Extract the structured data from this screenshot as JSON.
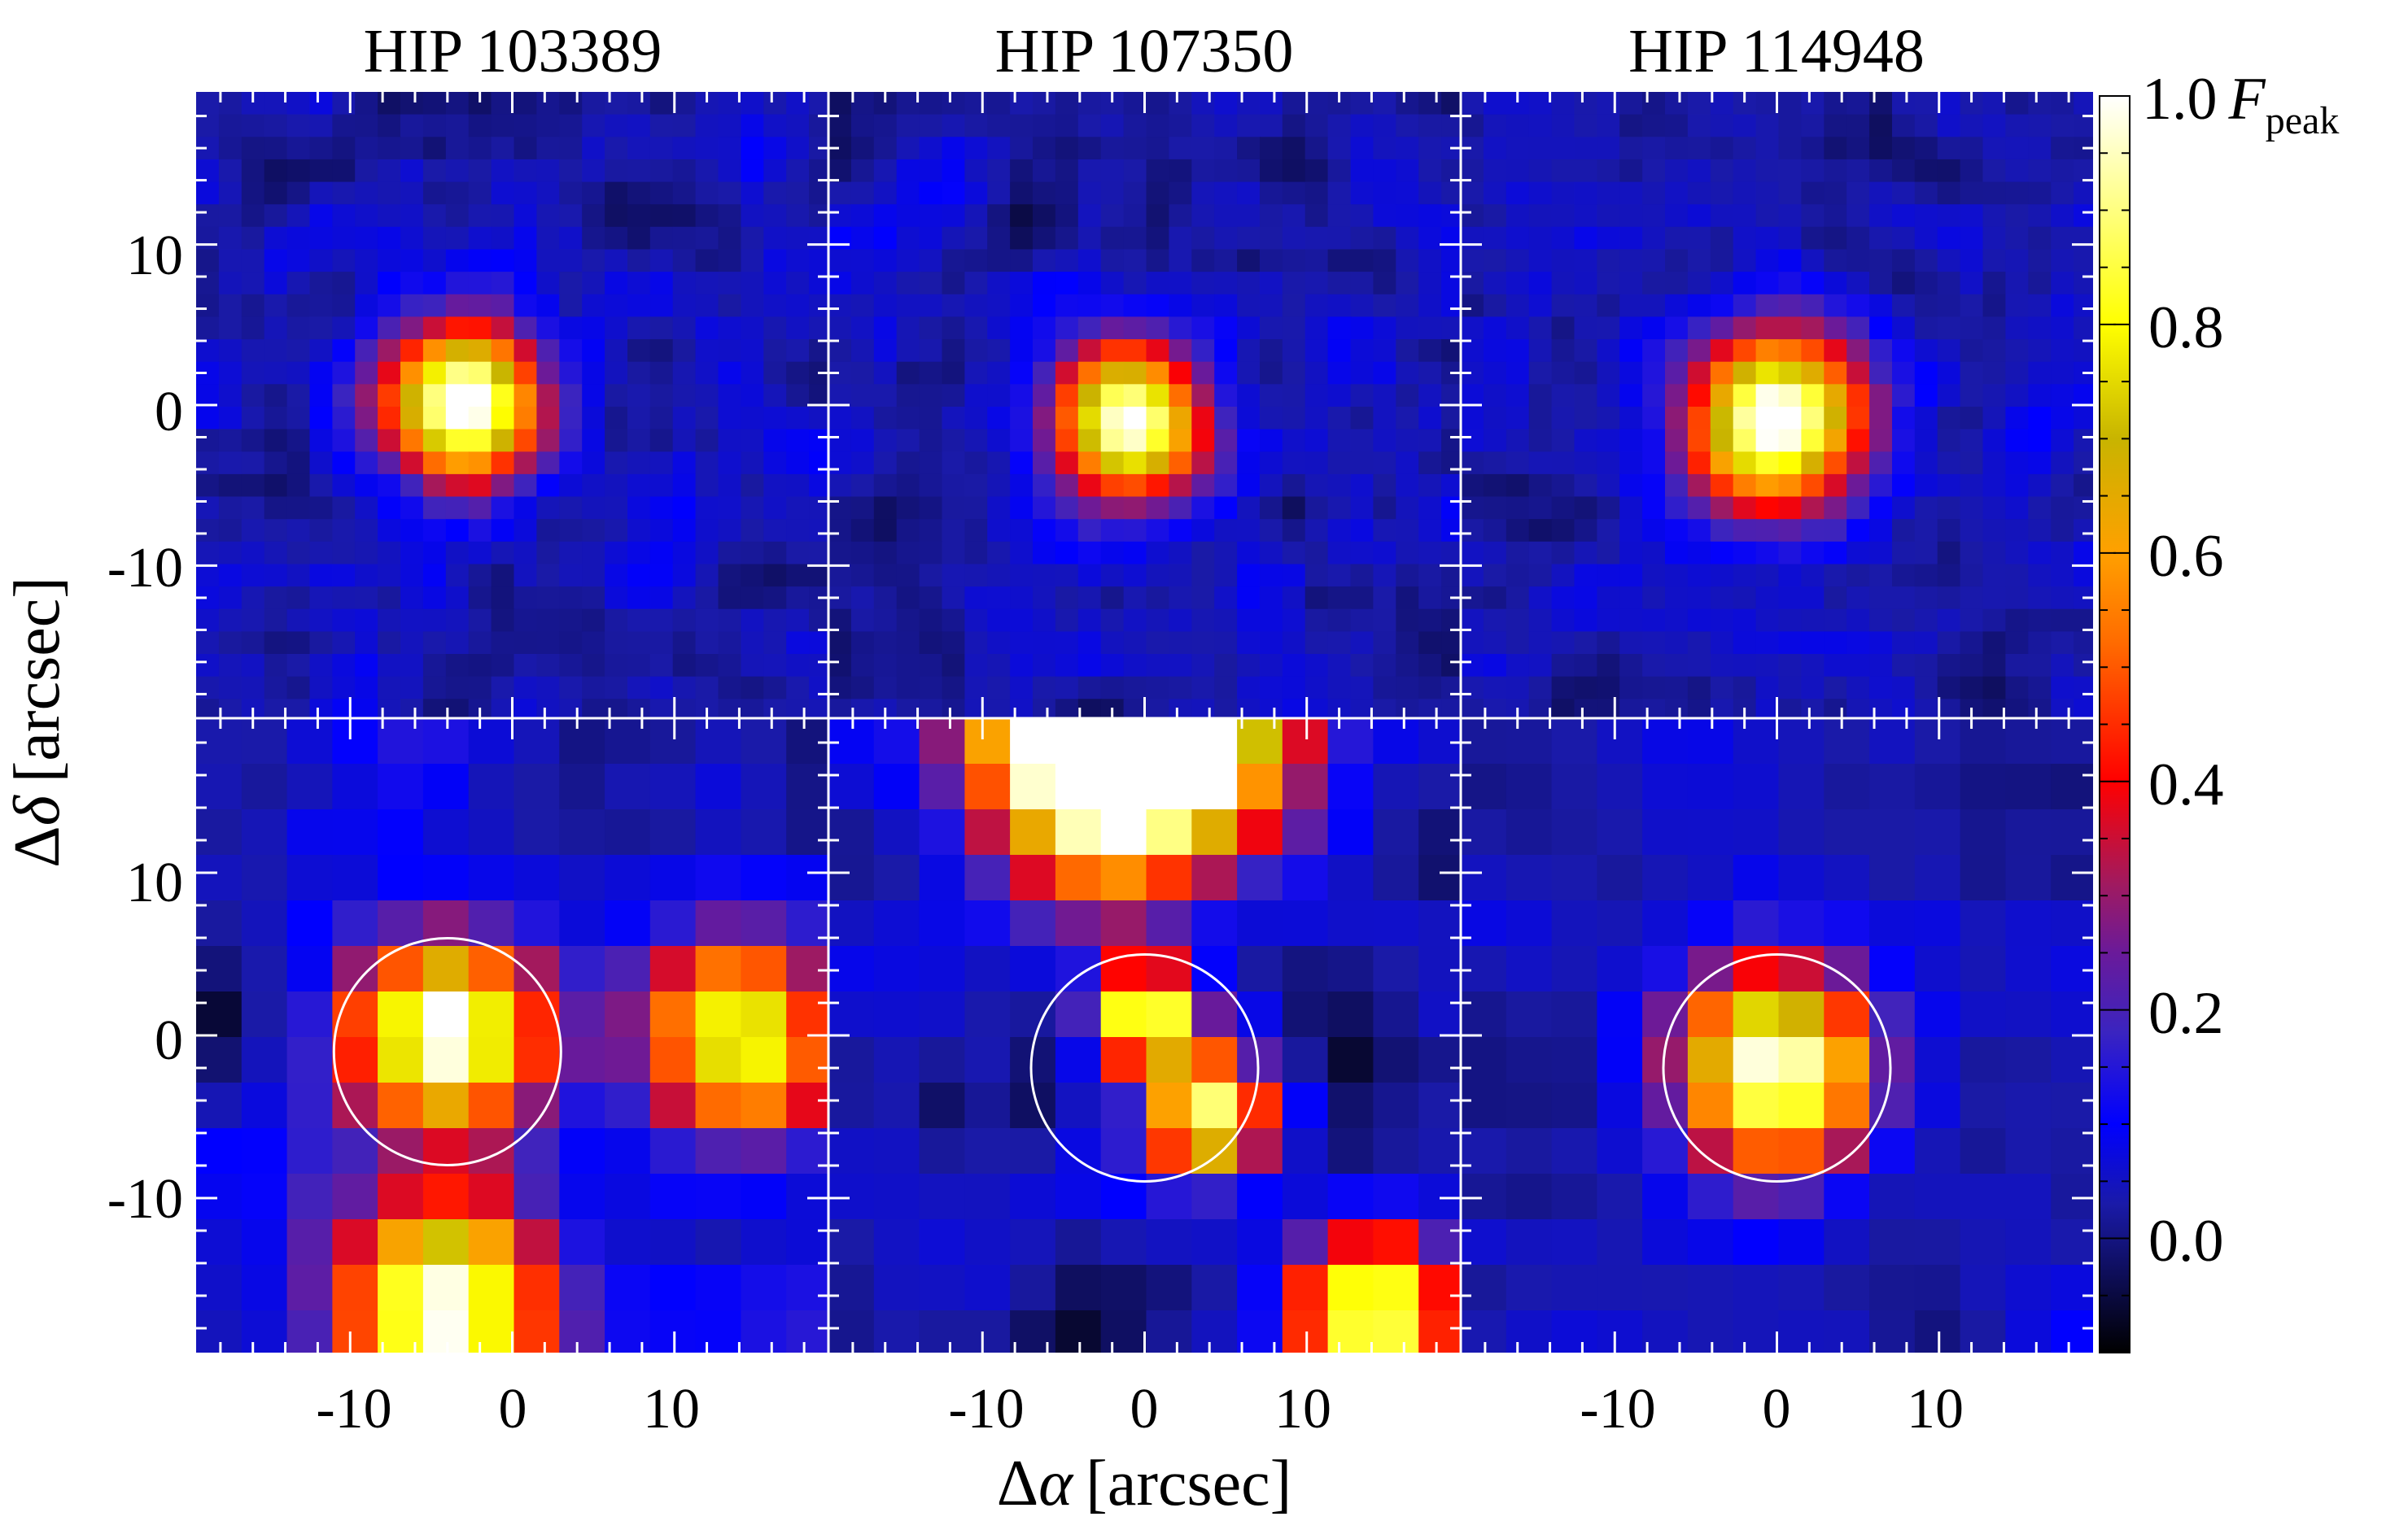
{
  "chart_data": {
    "type": "heatmap",
    "figure": {
      "column_titles": [
        "HIP 103389",
        "HIP 107350",
        "HIP 114948"
      ],
      "xlabel_greek": "Δ",
      "xlabel_symbol": "α",
      "xlabel_unit": "[arcsec]",
      "ylabel_greek": "Δ",
      "ylabel_symbol": "δ",
      "ylabel_unit": "[arcsec]",
      "x_range": [
        -19.5,
        19.5
      ],
      "y_range": [
        -19.5,
        19.5
      ],
      "x_ticks": [
        -10,
        0,
        10
      ],
      "y_ticks": [
        10,
        0,
        -10
      ],
      "x_tick_labels": [
        "-10",
        "0",
        "10"
      ],
      "y_tick_labels": [
        "10",
        "0",
        "-10"
      ]
    },
    "colorbar": {
      "range": [
        -0.1,
        1.0
      ],
      "tick_values": [
        0.0,
        0.2,
        0.4,
        0.6,
        0.8
      ],
      "tick_labels": [
        "0.0",
        "0.2",
        "0.4",
        "0.6",
        "0.8"
      ],
      "top_label_value": "1.0",
      "top_label_symbol": "F",
      "top_label_subscript": "peak",
      "colormap": [
        "#000000",
        "#1a1aa8",
        "#0000ff",
        "#3a24c0",
        "#6a1a9a",
        "#a01a60",
        "#ff0000",
        "#ff6a00",
        "#ffa000",
        "#c8b400",
        "#ffff00",
        "#ffffff"
      ],
      "colormap_stops": [
        -0.1,
        0.03,
        0.1,
        0.18,
        0.25,
        0.31,
        0.4,
        0.52,
        0.6,
        0.7,
        0.8,
        1.0
      ]
    },
    "panels": [
      {
        "row": "top",
        "column": 0,
        "sources": [
          {
            "x": -3,
            "y": 0,
            "amp": 1.0,
            "sigma": 3.4
          }
        ],
        "noise": 0.11,
        "pixel": 1.4,
        "circle": null
      },
      {
        "row": "top",
        "column": 1,
        "sources": [
          {
            "x": -1,
            "y": -1,
            "amp": 1.0,
            "sigma": 3.2
          }
        ],
        "noise": 0.11,
        "pixel": 1.4,
        "circle": null
      },
      {
        "row": "top",
        "column": 2,
        "sources": [
          {
            "x": 0,
            "y": -1,
            "amp": 1.0,
            "sigma": 3.8
          }
        ],
        "noise": 0.1,
        "pixel": 1.4,
        "circle": null
      },
      {
        "row": "bottom",
        "column": 0,
        "sources": [
          {
            "x": -4,
            "y": 0,
            "amp": 1.0,
            "sigma": 4.0
          },
          {
            "x": 14,
            "y": 0,
            "amp": 0.85,
            "sigma": 4.0
          },
          {
            "x": -4,
            "y": -17,
            "amp": 1.0,
            "sigma": 4.5
          }
        ],
        "noise": 0.14,
        "pixel": 2.8,
        "circle": {
          "x": -4,
          "y": -1,
          "r": 7
        }
      },
      {
        "row": "bottom",
        "column": 1,
        "sources": [
          {
            "x": -1,
            "y": 19,
            "amp": 2.0,
            "sigma": 5.5
          },
          {
            "x": 0,
            "y": 1,
            "amp": 0.9,
            "sigma": 2.2
          },
          {
            "x": 4,
            "y": -5,
            "amp": 0.85,
            "sigma": 2.6
          },
          {
            "x": 14,
            "y": -17,
            "amp": 0.9,
            "sigma": 3.5
          }
        ],
        "noise": 0.15,
        "pixel": 2.8,
        "circle": {
          "x": 0,
          "y": -2,
          "r": 7
        }
      },
      {
        "row": "bottom",
        "column": 2,
        "sources": [
          {
            "x": 0,
            "y": -2,
            "amp": 1.0,
            "sigma": 4.2
          }
        ],
        "noise": 0.09,
        "pixel": 2.8,
        "circle": {
          "x": 0,
          "y": -2,
          "r": 7
        }
      }
    ]
  }
}
